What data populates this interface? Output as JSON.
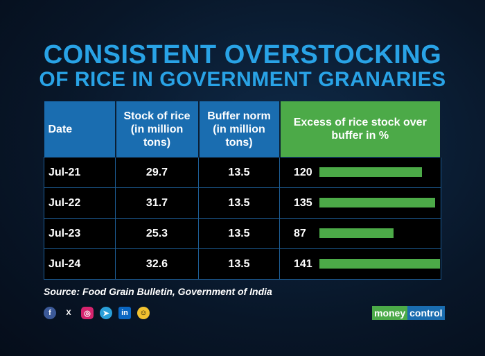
{
  "title": {
    "line1": "CONSISTENT OVERSTOCKING",
    "line2": "OF RICE IN GOVERNMENT GRANARIES"
  },
  "chart_data": {
    "type": "table",
    "columns": [
      "Date",
      "Stock of rice (in million tons)",
      "Buffer norm (in million tons)",
      "Excess of rice stock over buffer in %"
    ],
    "rows": [
      {
        "date": "Jul-21",
        "stock": "29.7",
        "buffer": "13.5",
        "excess": 120
      },
      {
        "date": "Jul-22",
        "stock": "31.7",
        "buffer": "13.5",
        "excess": 135
      },
      {
        "date": "Jul-23",
        "stock": "25.3",
        "buffer": "13.5",
        "excess": 87
      },
      {
        "date": "Jul-24",
        "stock": "32.6",
        "buffer": "13.5",
        "excess": 141
      }
    ],
    "bar_max": 141
  },
  "source": "Source: Food Grain Bulletin, Government of India",
  "social": {
    "facebook": "f",
    "x": "X",
    "instagram": "◎",
    "telegram": "➤",
    "linkedin": "in",
    "snapchat": "☺"
  },
  "logo": {
    "part1": "money",
    "part2": "control"
  },
  "colors": {
    "blue": "#1a6db0",
    "green": "#4caa48",
    "title": "#29a3e6"
  }
}
